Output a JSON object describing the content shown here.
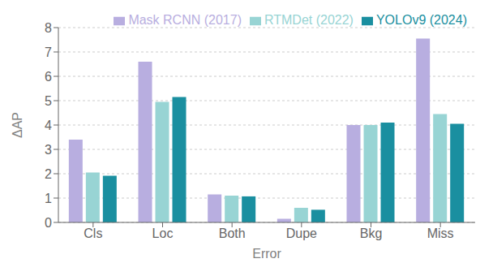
{
  "chart_data": {
    "type": "bar",
    "categories": [
      "Cls",
      "Loc",
      "Both",
      "Dupe",
      "Bkg",
      "Miss"
    ],
    "series": [
      {
        "name": "Mask RCNN (2017)",
        "color": "#b8aee0",
        "values": [
          3.4,
          6.6,
          1.15,
          0.15,
          4.0,
          7.55
        ]
      },
      {
        "name": "RTMDet (2022)",
        "color": "#98d4d4",
        "values": [
          2.05,
          4.95,
          1.1,
          0.6,
          4.0,
          4.45
        ]
      },
      {
        "name": "YOLOv9 (2024)",
        "color": "#1a8fa0",
        "values": [
          1.92,
          5.15,
          1.07,
          0.52,
          4.1,
          4.05
        ]
      }
    ],
    "xlabel": "Error",
    "ylabel": "ΔAP",
    "ylim": [
      0,
      8
    ],
    "yticks": [
      0,
      1,
      2,
      3,
      4,
      5,
      6,
      7,
      8
    ],
    "grid": true,
    "legend": "upper right"
  }
}
